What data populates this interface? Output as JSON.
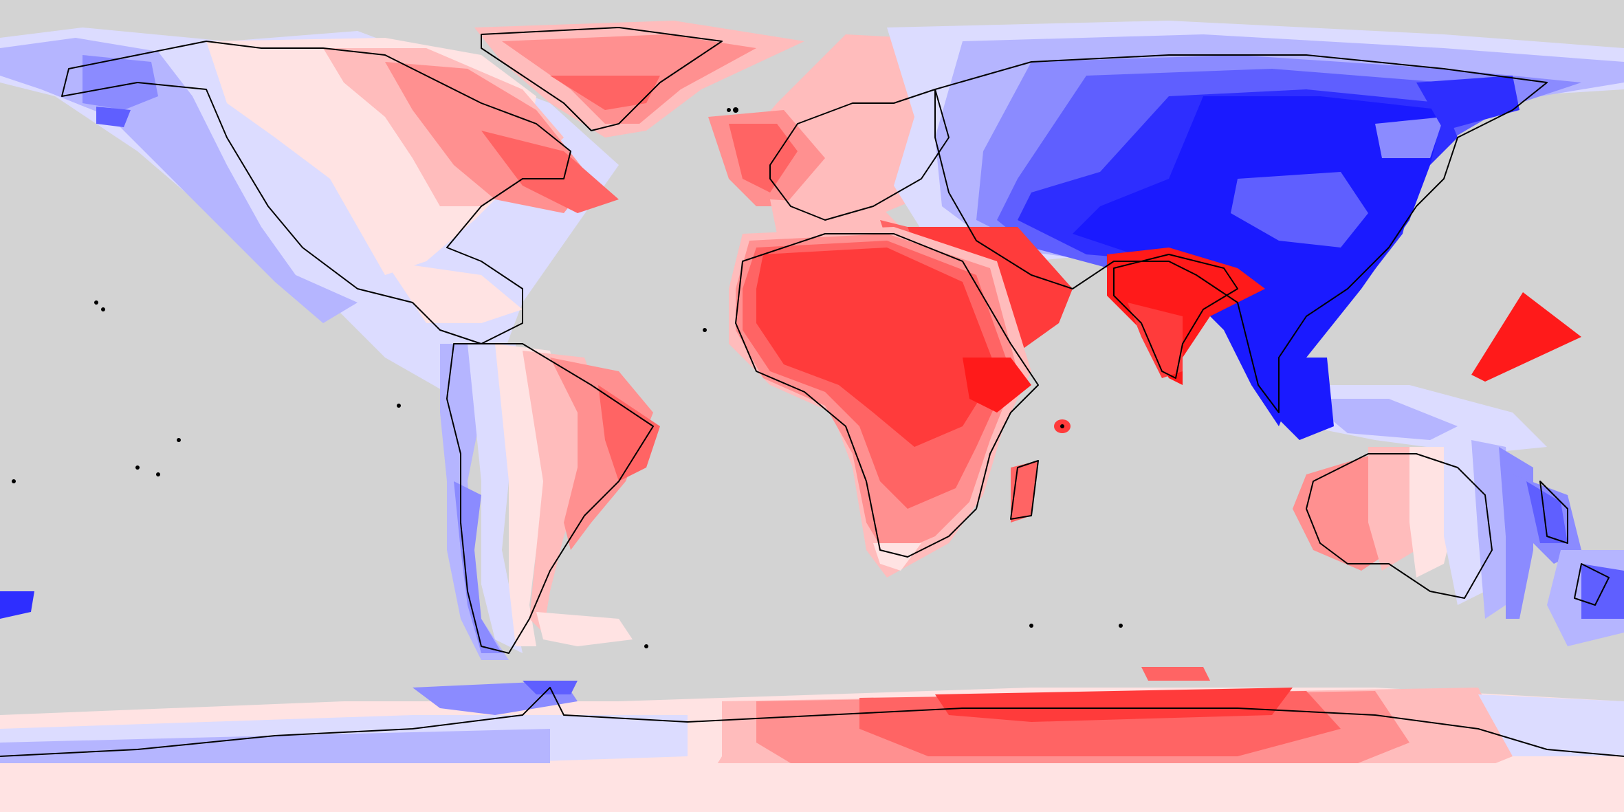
{
  "map": {
    "projection": "equirectangular",
    "background_color": "#d3d3d3",
    "coastline_color": "#000000",
    "palette": {
      "red_strong": "#ff1a1a",
      "red_1": "#ff3b3b",
      "red_2": "#ff6464",
      "red_3": "#ff9090",
      "red_4": "#ffbcbc",
      "red_5": "#ffe3e3",
      "white": "#f4f4ff",
      "blue_1": "#dcdcff",
      "blue_2": "#b5b5ff",
      "blue_3": "#8b8bff",
      "blue_4": "#5f5fff",
      "blue_5": "#2e2eff",
      "blue_strong": "#1a1aff"
    },
    "regions": [
      "north-america",
      "greenland",
      "south-america",
      "europe",
      "africa",
      "middle-east",
      "india",
      "asia",
      "southeast-asia",
      "australia",
      "new-zealand",
      "antarctica",
      "pacific-triangle"
    ]
  }
}
